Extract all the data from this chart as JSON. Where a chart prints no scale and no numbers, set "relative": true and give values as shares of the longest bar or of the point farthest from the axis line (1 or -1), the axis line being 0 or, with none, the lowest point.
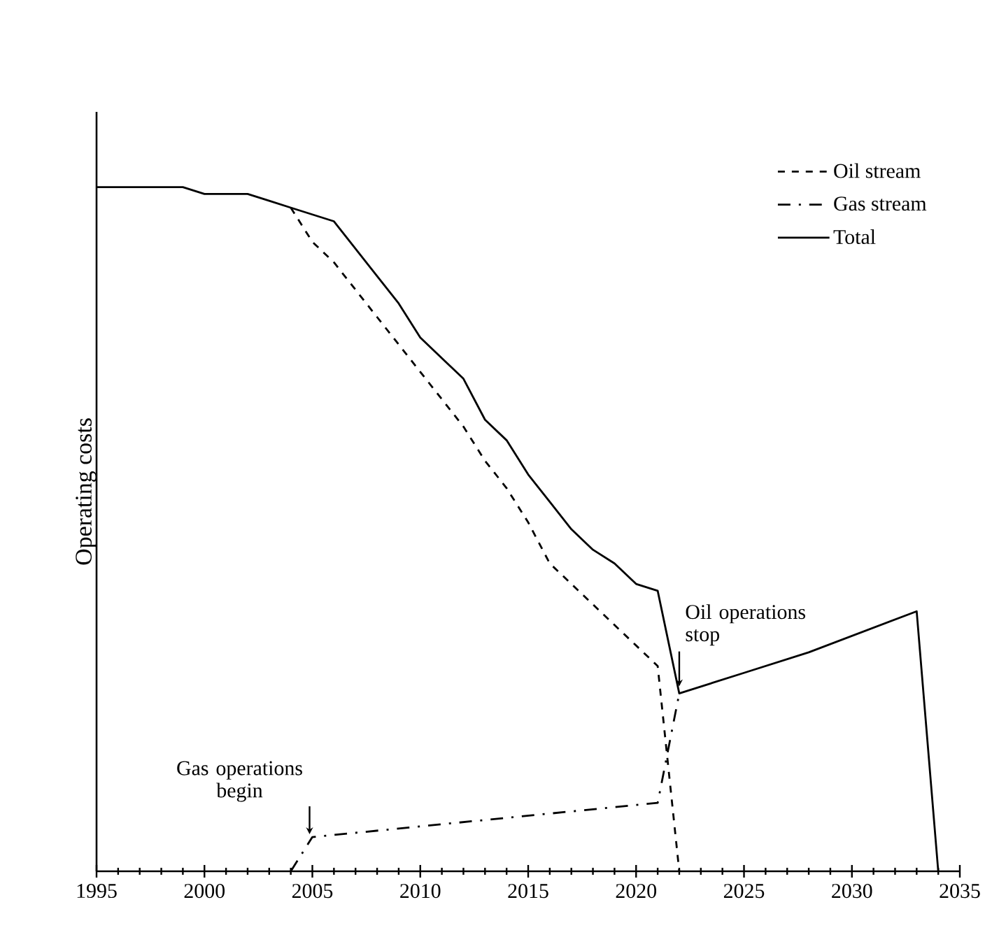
{
  "chart_data": {
    "type": "line",
    "relative": true,
    "ylabel": "Operating costs",
    "xlim": [
      1995,
      2035
    ],
    "xticks": [
      1995,
      2000,
      2005,
      2010,
      2015,
      2020,
      2025,
      2030,
      2035
    ],
    "legend": "top right",
    "grid": false,
    "marker": "none",
    "series": [
      {
        "name": "Oil stream",
        "color": "#000000",
        "line_style": "dashed",
        "x": [
          2004,
          2005,
          2006,
          2007,
          2008,
          2009,
          2010,
          2011,
          2012,
          2013,
          2014,
          2015,
          2016,
          2017,
          2018,
          2019,
          2020,
          2021,
          2022
        ],
        "values": [
          0.97,
          0.92,
          0.89,
          0.85,
          0.81,
          0.77,
          0.73,
          0.69,
          0.65,
          0.6,
          0.56,
          0.51,
          0.45,
          0.42,
          0.39,
          0.36,
          0.33,
          0.3,
          0
        ]
      },
      {
        "name": "Gas stream",
        "color": "#000000",
        "line_style": "dashdot",
        "x": [
          2004,
          2005,
          2021,
          2022
        ],
        "values": [
          0,
          0.05,
          0.1,
          0.26
        ]
      },
      {
        "name": "Total",
        "color": "#000000",
        "line_style": "solid",
        "x": [
          1995,
          1996,
          1997,
          1998,
          1999,
          2000,
          2001,
          2002,
          2003,
          2004,
          2005,
          2006,
          2007,
          2008,
          2009,
          2010,
          2011,
          2012,
          2013,
          2014,
          2015,
          2016,
          2017,
          2018,
          2019,
          2020,
          2021,
          2022,
          2025,
          2028,
          2033,
          2034
        ],
        "values": [
          1.0,
          1.0,
          1.0,
          1.0,
          1.0,
          0.99,
          0.99,
          0.99,
          0.98,
          0.97,
          0.96,
          0.95,
          0.91,
          0.87,
          0.83,
          0.78,
          0.75,
          0.72,
          0.66,
          0.63,
          0.58,
          0.54,
          0.5,
          0.47,
          0.45,
          0.42,
          0.41,
          0.26,
          0.29,
          0.32,
          0.38,
          0
        ]
      }
    ],
    "annotations": [
      {
        "text": "Oil operations stop",
        "x": 2022,
        "y": 0.26
      },
      {
        "text": "Gas operations begin",
        "x": 2005,
        "y": 0.05
      }
    ]
  }
}
